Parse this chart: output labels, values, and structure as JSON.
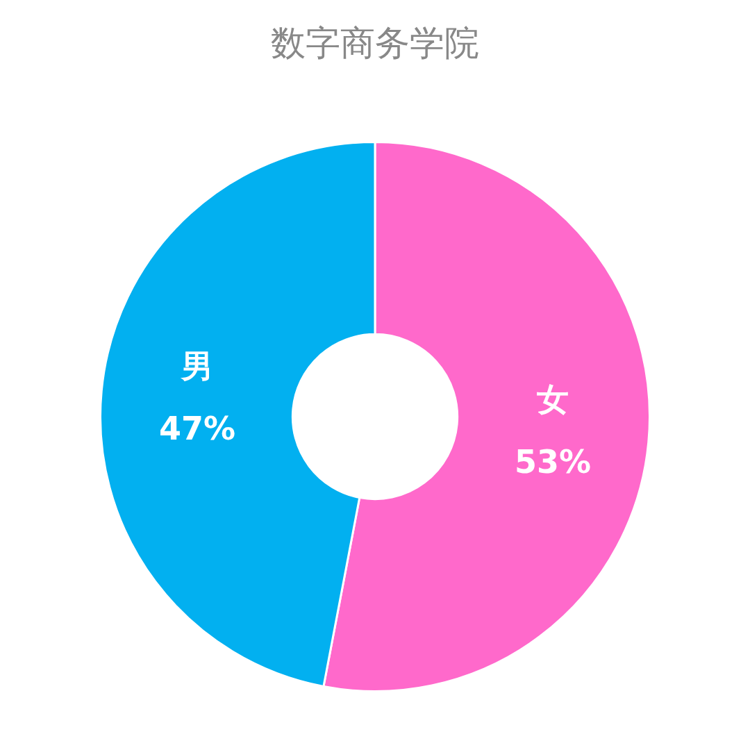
{
  "chart_data": {
    "type": "donut",
    "title": "数字商务学院",
    "categories": [
      "女",
      "男"
    ],
    "values": [
      53,
      47
    ],
    "colors": [
      "#ff69cb",
      "#02b0f0"
    ],
    "value_labels": [
      "53%",
      "47%"
    ],
    "legend": false
  }
}
